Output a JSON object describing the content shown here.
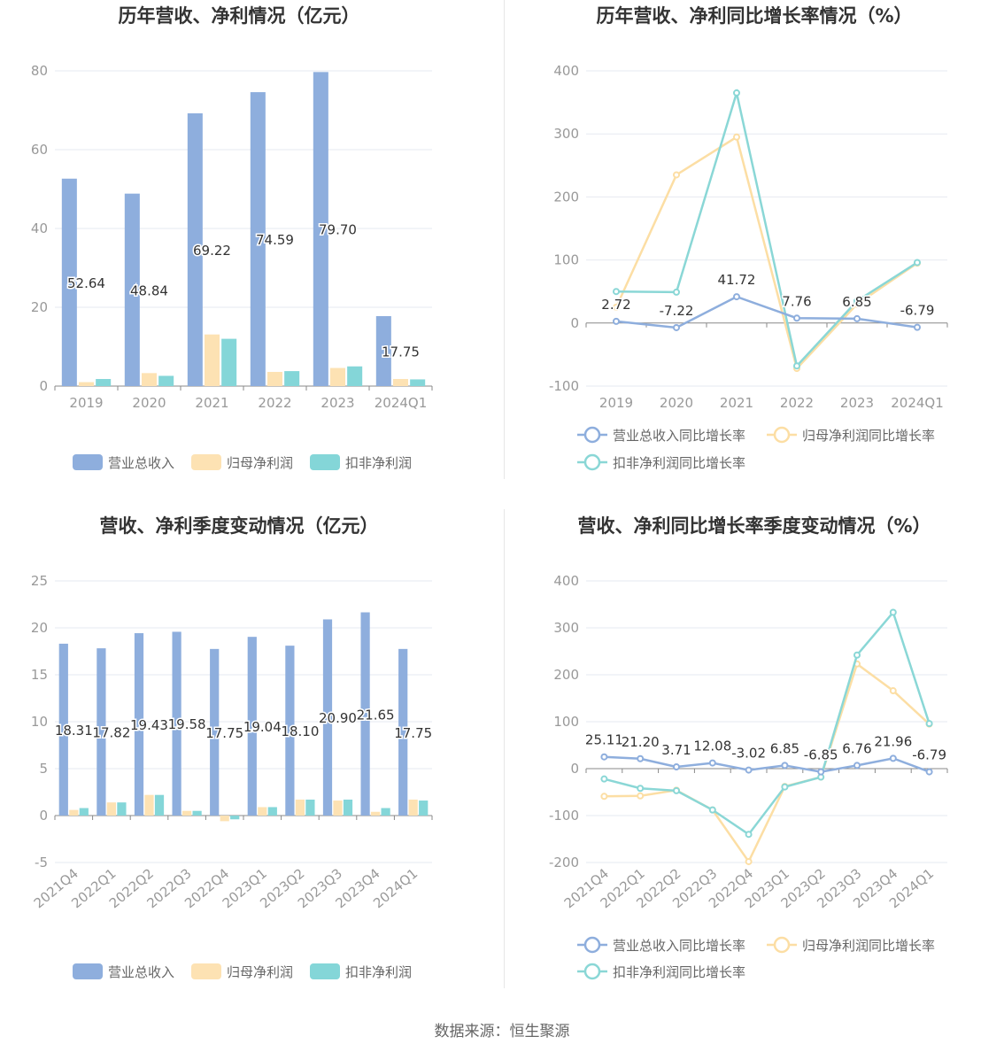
{
  "colors": {
    "revenue": "#8eaedd",
    "net_profit": "#fde2b3",
    "deducted_profit": "#84d6d8",
    "revenue_line": "#8eaedd",
    "net_line": "#fcdea4",
    "deducted_line": "#8ad7d6",
    "title": "#333333",
    "axis_text": "#999999",
    "grid": "#e6e9f0"
  },
  "source_text": "数据来源：恒生聚源",
  "chart_data": [
    {
      "type": "bar",
      "title": "历年营收、净利情况（亿元）",
      "categories": [
        "2019",
        "2020",
        "2021",
        "2022",
        "2023",
        "2024Q1"
      ],
      "ylim": [
        0,
        80
      ],
      "yticks": [
        "0",
        "20",
        "40",
        "60",
        "80"
      ],
      "series": [
        {
          "name": "营业总收入",
          "values": [
            52.64,
            48.84,
            69.22,
            74.59,
            79.7,
            17.75
          ],
          "labels": [
            "52.64",
            "48.84",
            "69.22",
            "74.59",
            "79.70",
            "17.75"
          ]
        },
        {
          "name": "归母净利润",
          "values": [
            1.0,
            3.3,
            13.1,
            3.6,
            4.6,
            1.8
          ]
        },
        {
          "name": "扣非净利润",
          "values": [
            1.8,
            2.6,
            12.0,
            3.8,
            5.0,
            1.7
          ]
        }
      ],
      "legend": "bottom",
      "grid": true
    },
    {
      "type": "line",
      "title": "历年营收、净利同比增长率情况（%）",
      "categories": [
        "2019",
        "2020",
        "2021",
        "2022",
        "2023",
        "2024Q1"
      ],
      "ylim": [
        -100,
        400
      ],
      "yticks": [
        "-100",
        "0",
        "100",
        "200",
        "300",
        "400"
      ],
      "series": [
        {
          "name": "营业总收入同比增长率",
          "values": [
            2.72,
            -7.22,
            41.72,
            7.76,
            6.85,
            -6.79
          ],
          "labels": [
            "2.72",
            "-7.22",
            "41.72",
            "7.76",
            "6.85",
            "-6.79"
          ]
        },
        {
          "name": "归母净利润同比增长率",
          "values": [
            25,
            235,
            295,
            -72,
            30,
            95
          ]
        },
        {
          "name": "扣非净利润同比增长率",
          "values": [
            50,
            49,
            365,
            -68,
            35,
            96
          ]
        }
      ],
      "legend": "bottom",
      "grid": true
    },
    {
      "type": "bar",
      "title": "营收、净利季度变动情况（亿元）",
      "categories": [
        "2021Q4",
        "2022Q1",
        "2022Q2",
        "2022Q3",
        "2022Q4",
        "2023Q1",
        "2023Q2",
        "2023Q3",
        "2023Q4",
        "2024Q1"
      ],
      "ylim": [
        -5,
        25
      ],
      "yticks": [
        "-5",
        "0",
        "5",
        "10",
        "15",
        "20",
        "25"
      ],
      "series": [
        {
          "name": "营业总收入",
          "values": [
            18.31,
            17.82,
            19.43,
            19.58,
            17.75,
            19.04,
            18.1,
            20.9,
            21.65,
            17.75
          ],
          "labels": [
            "18.31",
            "17.82",
            "19.43",
            "19.58",
            "17.75",
            "19.04",
            "18.10",
            "20.90",
            "21.65",
            "17.75"
          ]
        },
        {
          "name": "归母净利润",
          "values": [
            0.6,
            1.4,
            2.2,
            0.5,
            -0.6,
            0.9,
            1.7,
            1.6,
            0.4,
            1.7
          ]
        },
        {
          "name": "扣非净利润",
          "values": [
            0.8,
            1.4,
            2.2,
            0.5,
            -0.4,
            0.9,
            1.7,
            1.7,
            0.8,
            1.6
          ]
        }
      ],
      "legend": "bottom",
      "grid": true
    },
    {
      "type": "line",
      "title": "营收、净利同比增长率季度变动情况（%）",
      "categories": [
        "2021Q4",
        "2022Q1",
        "2022Q2",
        "2022Q3",
        "2022Q4",
        "2023Q1",
        "2023Q2",
        "2023Q3",
        "2023Q4",
        "2024Q1"
      ],
      "ylim": [
        -200,
        400
      ],
      "yticks": [
        "-200",
        "-100",
        "0",
        "100",
        "200",
        "300",
        "400"
      ],
      "series": [
        {
          "name": "营业总收入同比增长率",
          "values": [
            25.11,
            21.2,
            3.71,
            12.08,
            -3.02,
            6.85,
            -6.85,
            6.76,
            21.96,
            -6.79
          ],
          "labels": [
            "25.11",
            "21.20",
            "3.71",
            "12.08",
            "-3.02",
            "6.85",
            "-6.85",
            "6.76",
            "21.96",
            "-6.79"
          ]
        },
        {
          "name": "归母净利润同比增长率",
          "values": [
            -59,
            -58,
            -46,
            -88,
            -198,
            -38,
            -18,
            223,
            166,
            95
          ]
        },
        {
          "name": "扣非净利润同比增长率",
          "values": [
            -22,
            -42,
            -47,
            -88,
            -140,
            -39,
            -18,
            242,
            333,
            96
          ]
        }
      ],
      "legend": "bottom",
      "grid": true
    }
  ]
}
